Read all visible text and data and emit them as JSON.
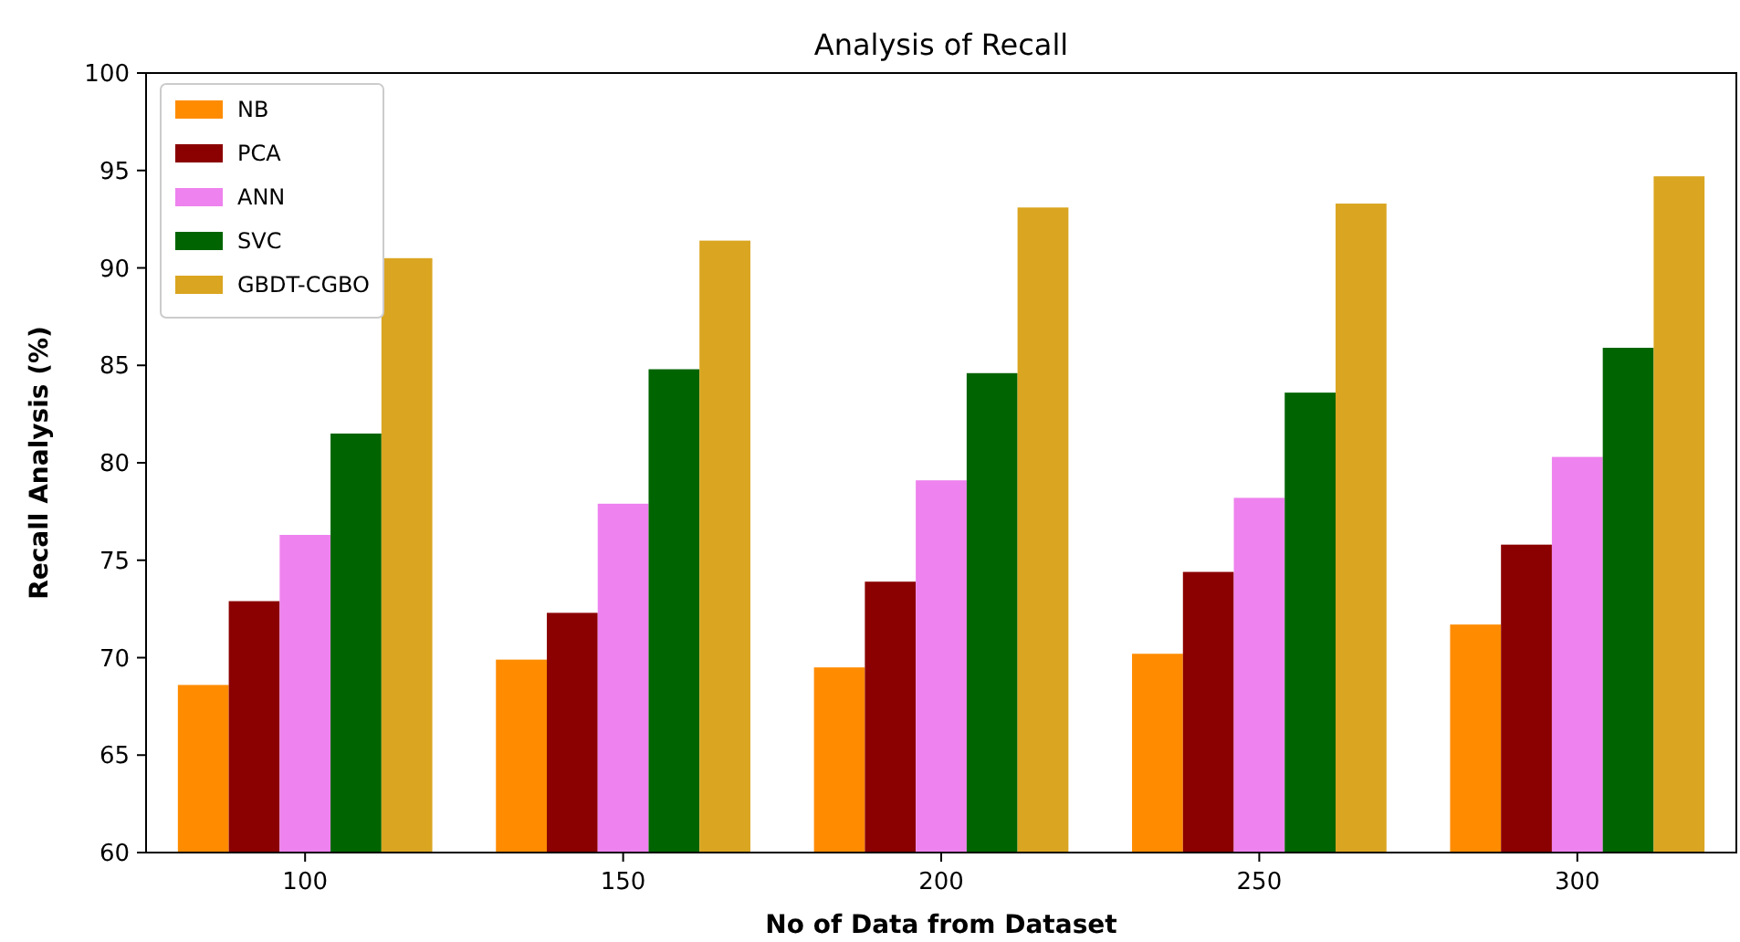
{
  "chart_data": {
    "type": "bar",
    "title": "Analysis of Recall",
    "xlabel": "No of Data from Dataset",
    "ylabel": "Recall Analysis (%)",
    "categories": [
      "100",
      "150",
      "200",
      "250",
      "300"
    ],
    "series": [
      {
        "name": "NB",
        "color": "#ff8c00",
        "values": [
          68.6,
          69.9,
          69.5,
          70.2,
          71.7
        ]
      },
      {
        "name": "PCA",
        "color": "#8b0000",
        "values": [
          72.9,
          72.3,
          73.9,
          74.4,
          75.8
        ]
      },
      {
        "name": "ANN",
        "color": "#ee82ee",
        "values": [
          76.3,
          77.9,
          79.1,
          78.2,
          80.3
        ]
      },
      {
        "name": "SVC",
        "color": "#006400",
        "values": [
          81.5,
          84.8,
          84.6,
          83.6,
          85.9
        ]
      },
      {
        "name": "GBDT-CGBO",
        "color": "#daa520",
        "values": [
          90.5,
          91.4,
          93.1,
          93.3,
          94.7
        ]
      }
    ],
    "ylim": [
      60,
      100
    ],
    "yticks": [
      60,
      65,
      70,
      75,
      80,
      85,
      90,
      95,
      100
    ],
    "legend": "top left",
    "grid": false
  }
}
